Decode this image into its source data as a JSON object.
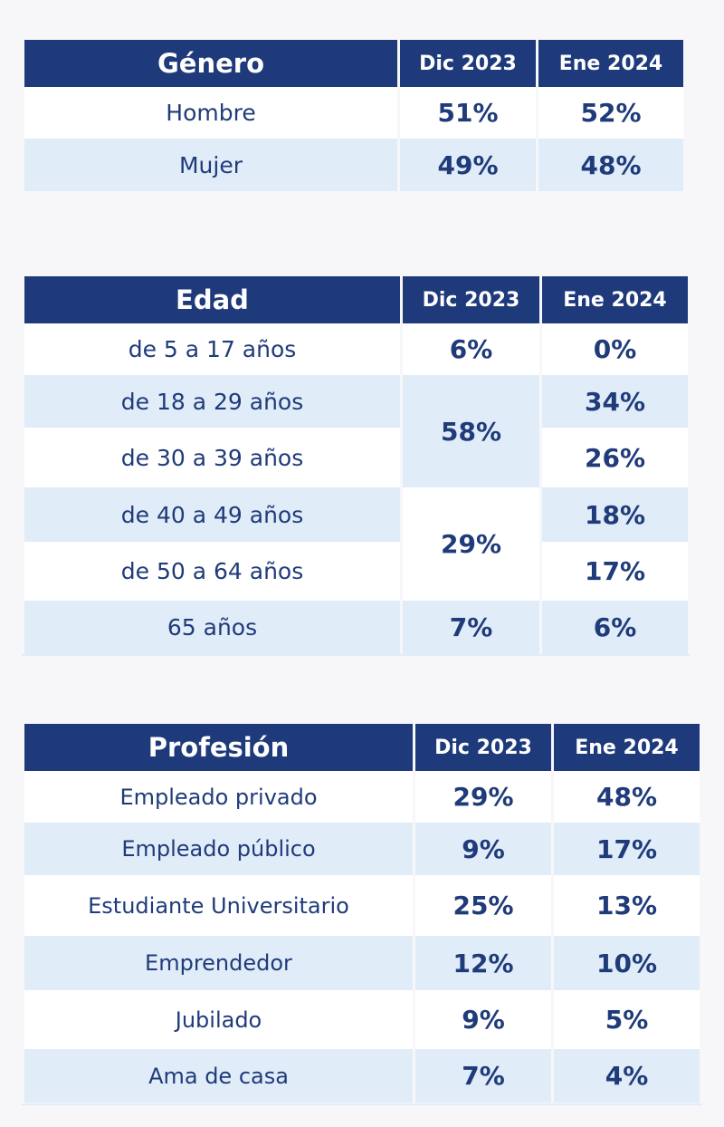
{
  "genero": {
    "header": "Género",
    "col1": "Dic 2023",
    "col2": "Ene 2024",
    "rows": [
      {
        "label": "Hombre",
        "dic": "51%",
        "ene": "52%"
      },
      {
        "label": "Mujer",
        "dic": "49%",
        "ene": "48%"
      }
    ]
  },
  "edad": {
    "header": "Edad",
    "col1": "Dic 2023",
    "col2": "Ene 2024",
    "rows": [
      {
        "label": "de 5 a 17 años",
        "ene": "0%"
      },
      {
        "label": "de 18 a 29 años",
        "ene": "34%"
      },
      {
        "label": "de 30 a 39 años",
        "ene": "26%"
      },
      {
        "label": "de 40 a 49 años",
        "ene": "18%"
      },
      {
        "label": "de 50 a 64 años",
        "ene": "17%"
      },
      {
        "label": "65 años",
        "ene": "6%"
      }
    ],
    "dic_groups": [
      "6%",
      "58%",
      "29%",
      "7%"
    ]
  },
  "profesion": {
    "header": "Profesión",
    "col1": "Dic 2023",
    "col2": "Ene 2024",
    "rows": [
      {
        "label": "Empleado privado",
        "dic": "29%",
        "ene": "48%"
      },
      {
        "label": "Empleado público",
        "dic": "9%",
        "ene": "17%"
      },
      {
        "label": "Estudiante Universitario",
        "dic": "25%",
        "ene": "13%"
      },
      {
        "label": "Emprendedor",
        "dic": "12%",
        "ene": "10%"
      },
      {
        "label": "Jubilado",
        "dic": "9%",
        "ene": "5%"
      },
      {
        "label": "Ama de casa",
        "dic": "7%",
        "ene": "4%"
      }
    ]
  },
  "colors": {
    "header_bg": "#1e3a7b",
    "shade_bg": "#e0ecf8",
    "text": "#1f3b7a"
  }
}
